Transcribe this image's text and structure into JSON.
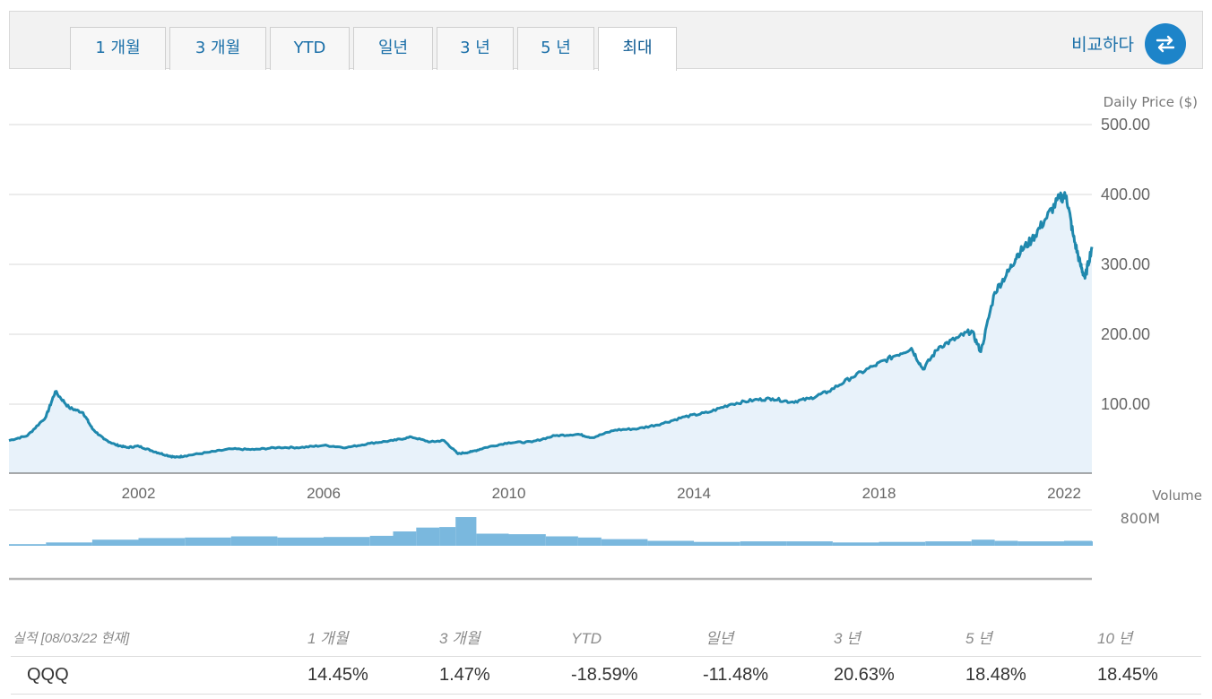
{
  "tabs": [
    {
      "label": "1 개월",
      "active": false
    },
    {
      "label": "3 개월",
      "active": false
    },
    {
      "label": "YTD",
      "active": false
    },
    {
      "label": "일년",
      "active": false
    },
    {
      "label": "3 년",
      "active": false
    },
    {
      "label": "5 년",
      "active": false
    },
    {
      "label": "최대",
      "active": true
    }
  ],
  "compare": {
    "label": "비교하다",
    "icon": "swap-arrows-icon"
  },
  "colors": {
    "line": "#1f88ad",
    "area": "#e8f2fa",
    "volume": "#7ab8de",
    "accent": "#1d84c9"
  },
  "chart_data": {
    "type": "line",
    "series": [
      {
        "x": [
          1999.2,
          1999.6,
          2000.0,
          2000.2,
          2000.5,
          2000.8,
          2001.0,
          2001.25,
          2001.5,
          2001.75,
          2002.0,
          2002.3,
          2002.6,
          2002.8,
          2003.0,
          2003.5,
          2004.0,
          2004.5,
          2005.0,
          2005.5,
          2006.0,
          2006.5,
          2007.0,
          2007.5,
          2007.9,
          2008.3,
          2008.6,
          2008.9,
          2009.2,
          2009.5,
          2010.0,
          2010.5,
          2011.0,
          2011.5,
          2011.8,
          2012.3,
          2012.8,
          2013.3,
          2013.8,
          2014.3,
          2014.8,
          2015.3,
          2015.7,
          2016.1,
          2016.5,
          2016.9,
          2017.4,
          2017.9,
          2018.3,
          2018.7,
          2018.95,
          2019.3,
          2019.7,
          2020.0,
          2020.2,
          2020.5,
          2020.8,
          2021.0,
          2021.3,
          2021.6,
          2021.9,
          2022.05,
          2022.2,
          2022.35,
          2022.45,
          2022.6
        ],
        "y": [
          48,
          55,
          82,
          118,
          95,
          88,
          65,
          50,
          42,
          38,
          40,
          33,
          27,
          24,
          26,
          31,
          36,
          35,
          38,
          38,
          41,
          38,
          44,
          48,
          53,
          46,
          48,
          29,
          32,
          38,
          45,
          46,
          55,
          57,
          52,
          63,
          65,
          72,
          82,
          88,
          100,
          106,
          108,
          103,
          108,
          118,
          138,
          155,
          168,
          180,
          150,
          182,
          195,
          205,
          175,
          260,
          290,
          315,
          335,
          365,
          395,
          398,
          340,
          300,
          280,
          325
        ]
      }
    ],
    "volume": {
      "x": [
        1999.2,
        2000.0,
        2001.0,
        2002.0,
        2003.0,
        2004.0,
        2005.0,
        2006.0,
        2007.0,
        2007.5,
        2008.0,
        2008.5,
        2008.85,
        2009.3,
        2010.0,
        2010.8,
        2011.5,
        2012.0,
        2013.0,
        2014.0,
        2015.0,
        2016.0,
        2017.0,
        2018.0,
        2019.0,
        2020.0,
        2020.5,
        2021.0,
        2022.0,
        2022.6
      ],
      "y": [
        30,
        60,
        110,
        140,
        150,
        170,
        150,
        160,
        180,
        260,
        330,
        340,
        520,
        220,
        210,
        170,
        150,
        120,
        90,
        70,
        80,
        80,
        60,
        70,
        80,
        110,
        90,
        80,
        90,
        80
      ]
    },
    "xlim": [
      1999.2,
      2022.6
    ],
    "ylim": [
      0,
      500
    ],
    "yticks": [
      "100.00",
      "200.00",
      "300.00",
      "400.00",
      "500.00"
    ],
    "xticks": [
      "2002",
      "2006",
      "2010",
      "2014",
      "2018",
      "2022"
    ],
    "ylabel": "Daily Price ($)",
    "volume_label": "Volume",
    "volume_tick": "800M",
    "grid": true
  },
  "performance": {
    "headers": [
      "실적 [08/03/22 현재]",
      "1 개월",
      "3 개월",
      "YTD",
      "일년",
      "3 년",
      "5 년",
      "10 년"
    ],
    "rows": [
      {
        "ticker": "QQQ",
        "values": [
          "14.45%",
          "1.47%",
          "-18.59%",
          "-11.48%",
          "20.63%",
          "18.48%",
          "18.45%"
        ]
      }
    ]
  }
}
